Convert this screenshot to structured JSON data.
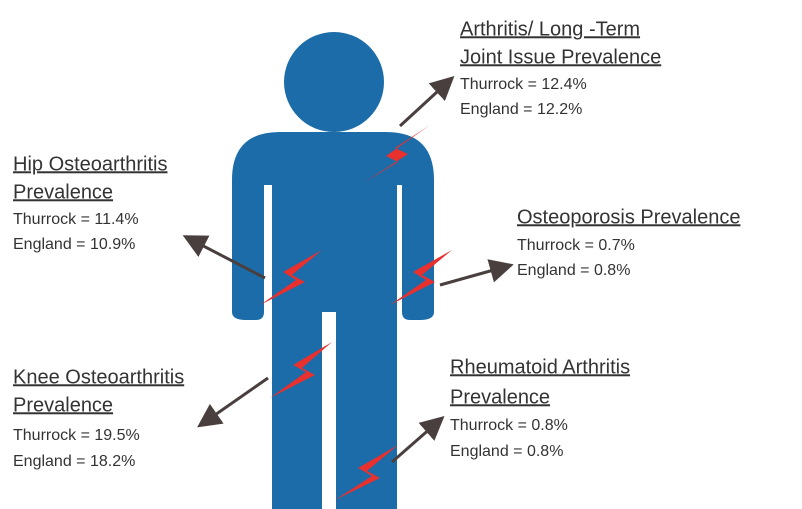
{
  "callouts": [
    {
      "title": [
        "Arthritis/ Long -Term",
        "Joint Issue Prevalence"
      ],
      "lines": [
        "Thurrock = 12.4%",
        "England = 12.2%"
      ]
    },
    {
      "title": [
        "Hip Osteoarthritis",
        "Prevalence"
      ],
      "lines": [
        "Thurrock = 11.4%",
        "England = 10.9%"
      ]
    },
    {
      "title": [
        "Osteoporosis Prevalence"
      ],
      "lines": [
        "Thurrock = 0.7%",
        "England = 0.8%"
      ]
    },
    {
      "title": [
        "Knee Osteoarthritis",
        "Prevalence"
      ],
      "lines": [
        "Thurrock = 19.5%",
        "England = 18.2%"
      ]
    },
    {
      "title": [
        "Rheumatoid Arthritis",
        "Prevalence"
      ],
      "lines": [
        "Thurrock = 0.8%",
        "England = 0.8%"
      ]
    }
  ]
}
